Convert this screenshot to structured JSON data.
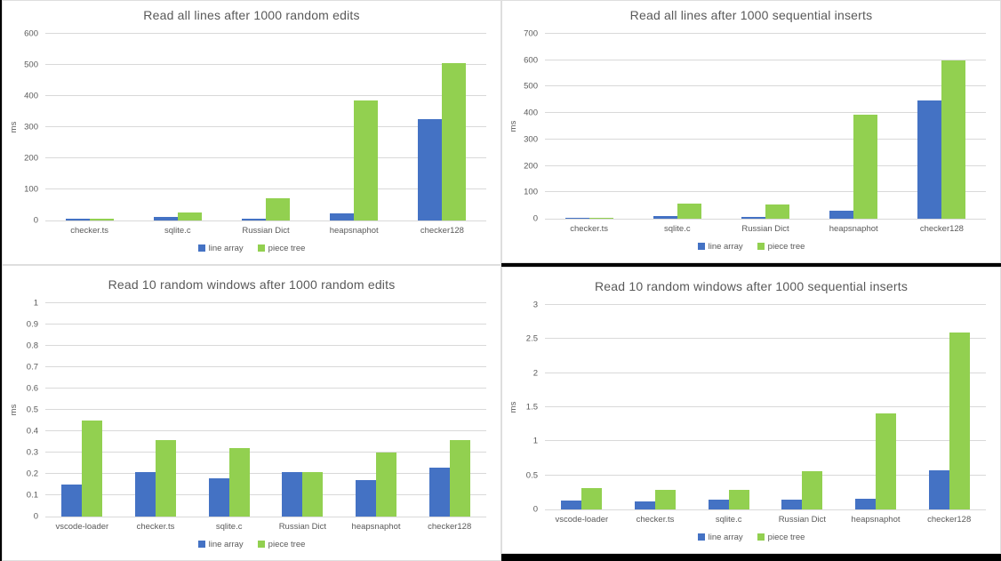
{
  "colors": {
    "line_array": "#4472c4",
    "piece_tree": "#92d050",
    "gridline": "#d9d9d9",
    "text": "#595959",
    "panel_background": "#ffffff",
    "page_background": "#000000"
  },
  "chart_data": [
    {
      "type": "bar",
      "title": "Read all lines after 1000 random edits",
      "xlabel": "",
      "ylabel": "ms",
      "ylim": [
        0,
        600
      ],
      "yticks": [
        0,
        100,
        200,
        300,
        400,
        500,
        600
      ],
      "ytick_labels": [
        "0",
        "100",
        "200",
        "300",
        "400",
        "500",
        "600"
      ],
      "grid": true,
      "legend_position": "bottom",
      "categories": [
        "checker.ts",
        "sqlite.c",
        "Russian Dict",
        "heapsnaphot",
        "checker128"
      ],
      "series": [
        {
          "name": "line array",
          "color": "#4472c4",
          "values": [
            5,
            12,
            5,
            24,
            325
          ]
        },
        {
          "name": "piece tree",
          "color": "#92d050",
          "values": [
            7,
            26,
            72,
            387,
            505
          ]
        }
      ]
    },
    {
      "type": "bar",
      "title": "Read all lines after 1000 sequential inserts",
      "xlabel": "",
      "ylabel": "ms",
      "ylim": [
        0,
        700
      ],
      "yticks": [
        0,
        100,
        200,
        300,
        400,
        500,
        600,
        700
      ],
      "ytick_labels": [
        "0",
        "100",
        "200",
        "300",
        "400",
        "500",
        "600",
        "700"
      ],
      "grid": true,
      "legend_position": "bottom",
      "categories": [
        "checker.ts",
        "sqlite.c",
        "Russian Dict",
        "heapsnaphot",
        "checker128"
      ],
      "series": [
        {
          "name": "line array",
          "color": "#4472c4",
          "values": [
            4,
            11,
            8,
            30,
            449
          ]
        },
        {
          "name": "piece tree",
          "color": "#92d050",
          "values": [
            4,
            58,
            55,
            394,
            599
          ]
        }
      ]
    },
    {
      "type": "bar",
      "title": "Read 10 random windows after 1000 random edits",
      "xlabel": "",
      "ylabel": "ms",
      "ylim": [
        0,
        1
      ],
      "yticks": [
        0,
        0.1,
        0.2,
        0.3,
        0.4,
        0.5,
        0.6,
        0.7,
        0.8,
        0.9,
        1
      ],
      "ytick_labels": [
        "0",
        "0.1",
        "0.2",
        "0.3",
        "0.4",
        "0.5",
        "0.6",
        "0.7",
        "0.8",
        "0.9",
        "1"
      ],
      "grid": true,
      "legend_position": "bottom",
      "categories": [
        "vscode-loader",
        "checker.ts",
        "sqlite.c",
        "Russian Dict",
        "heapsnaphot",
        "checker128"
      ],
      "series": [
        {
          "name": "line array",
          "color": "#4472c4",
          "values": [
            0.15,
            0.21,
            0.18,
            0.21,
            0.17,
            0.23
          ]
        },
        {
          "name": "piece tree",
          "color": "#92d050",
          "values": [
            0.45,
            0.36,
            0.32,
            0.21,
            0.3,
            0.36
          ]
        }
      ]
    },
    {
      "type": "bar",
      "title": "Read 10 random windows after 1000 sequential inserts",
      "xlabel": "",
      "ylabel": "ms",
      "ylim": [
        0,
        3
      ],
      "yticks": [
        0,
        0.5,
        1,
        1.5,
        2,
        2.5,
        3
      ],
      "ytick_labels": [
        "0",
        "0.5",
        "1",
        "1.5",
        "2",
        "2.5",
        "3"
      ],
      "grid": true,
      "legend_position": "bottom",
      "categories": [
        "vscode-loader",
        "checker.ts",
        "sqlite.c",
        "Russian Dict",
        "heapsnaphot",
        "checker128"
      ],
      "series": [
        {
          "name": "line array",
          "color": "#4472c4",
          "values": [
            0.13,
            0.12,
            0.15,
            0.15,
            0.16,
            0.57
          ]
        },
        {
          "name": "piece tree",
          "color": "#92d050",
          "values": [
            0.31,
            0.29,
            0.29,
            0.56,
            1.41,
            2.59
          ]
        }
      ]
    }
  ]
}
